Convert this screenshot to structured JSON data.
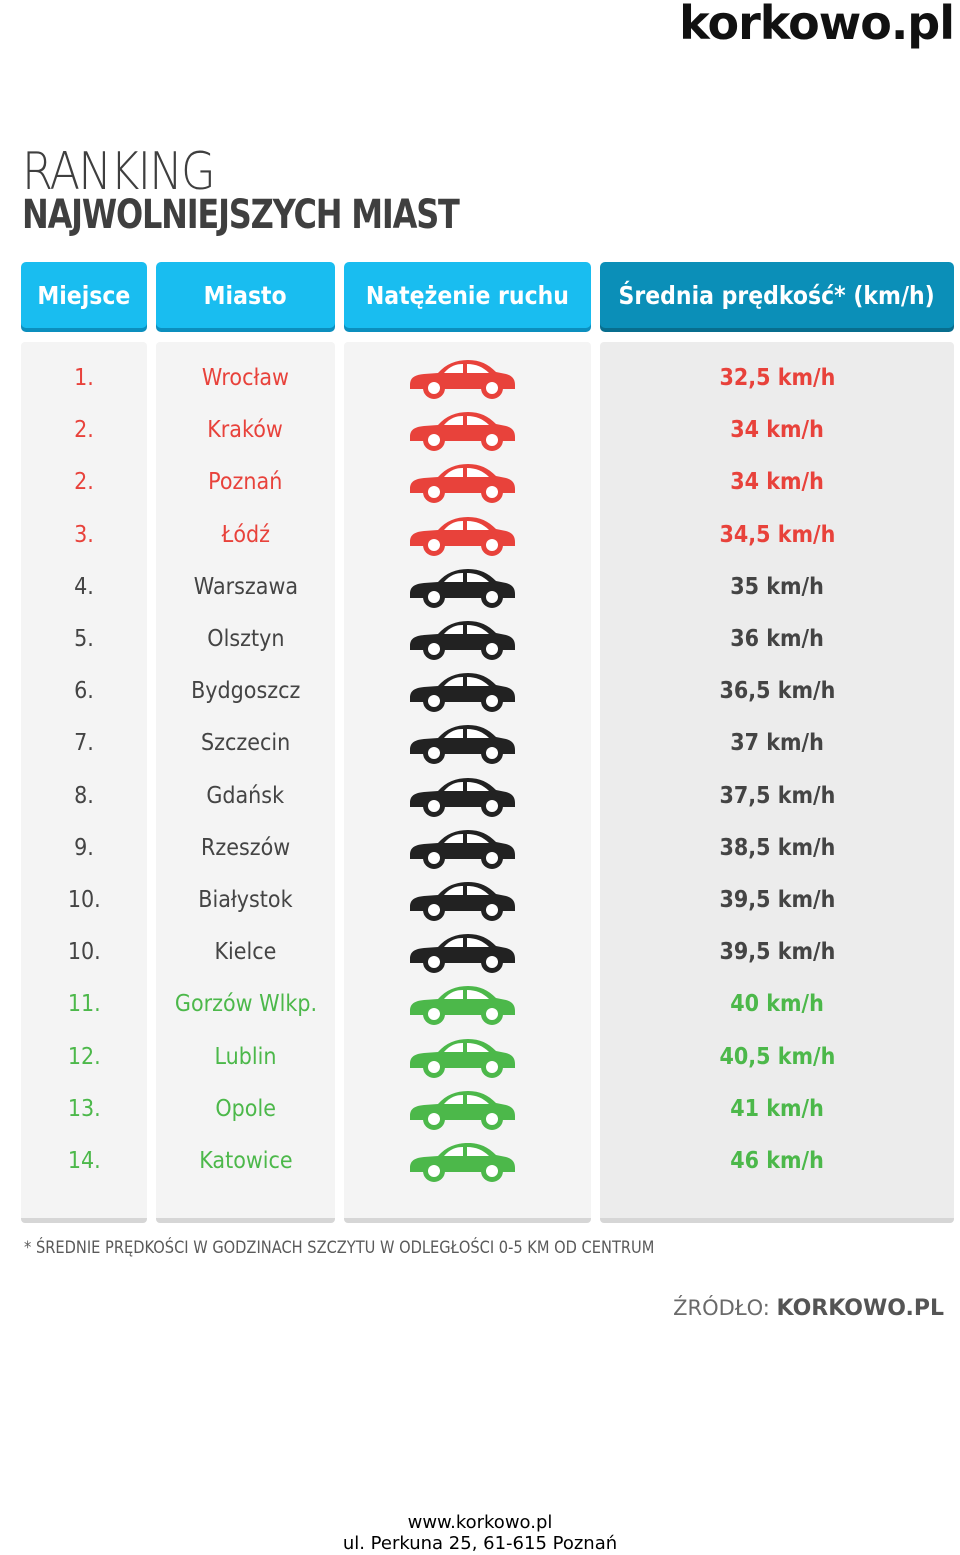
{
  "brand": {
    "logo": "korkowo.pl"
  },
  "title": {
    "line1": "RANKING",
    "line2": "NAJWOLNIEJSZYCH MIAST"
  },
  "headers": {
    "rank": "Miejsce",
    "city": "Miasto",
    "traffic": "Natężenie ruchu",
    "speed": "Średnia prędkość* (km/h)"
  },
  "colors": {
    "red": "#e8423b",
    "black": "#222222",
    "green": "#4cb84a",
    "header_light": "#19bdf0",
    "header_dark": "#0b8fb8"
  },
  "chart_data": {
    "type": "table",
    "columns": [
      "Miejsce",
      "Miasto",
      "Natężenie ruchu",
      "Średnia prędkość* (km/h)"
    ],
    "rows": [
      {
        "rank": "1.",
        "city": "Wrocław",
        "speed": "32,5 km/h",
        "level": "red"
      },
      {
        "rank": "2.",
        "city": "Kraków",
        "speed": "34 km/h",
        "level": "red"
      },
      {
        "rank": "2.",
        "city": "Poznań",
        "speed": "34 km/h",
        "level": "red"
      },
      {
        "rank": "3.",
        "city": "Łódź",
        "speed": "34,5 km/h",
        "level": "red"
      },
      {
        "rank": "4.",
        "city": "Warszawa",
        "speed": "35 km/h",
        "level": "black"
      },
      {
        "rank": "5.",
        "city": "Olsztyn",
        "speed": "36 km/h",
        "level": "black"
      },
      {
        "rank": "6.",
        "city": "Bydgoszcz",
        "speed": "36,5 km/h",
        "level": "black"
      },
      {
        "rank": "7.",
        "city": "Szczecin",
        "speed": "37 km/h",
        "level": "black"
      },
      {
        "rank": "8.",
        "city": "Gdańsk",
        "speed": "37,5 km/h",
        "level": "black"
      },
      {
        "rank": "9.",
        "city": "Rzeszów",
        "speed": "38,5 km/h",
        "level": "black"
      },
      {
        "rank": "10.",
        "city": "Białystok",
        "speed": "39,5 km/h",
        "level": "black"
      },
      {
        "rank": "10.",
        "city": "Kielce",
        "speed": "39,5 km/h",
        "level": "black"
      },
      {
        "rank": "11.",
        "city": "Gorzów Wlkp.",
        "speed": "40 km/h",
        "level": "green"
      },
      {
        "rank": "12.",
        "city": "Lublin",
        "speed": "40,5 km/h",
        "level": "green"
      },
      {
        "rank": "13.",
        "city": "Opole",
        "speed": "41 km/h",
        "level": "green"
      },
      {
        "rank": "14.",
        "city": "Katowice",
        "speed": "46 km/h",
        "level": "green"
      }
    ]
  },
  "footnote": "* ŚREDNIE PRĘDKOŚCI W GODZINACH SZCZYTU W ODLEGŁOŚCI 0-5 KM OD CENTRUM",
  "source": {
    "label": "ŹRÓDŁO:",
    "value": "KORKOWO.PL"
  },
  "footer": {
    "url": "www.korkowo.pl",
    "address": "ul. Perkuna 25, 61-615 Poznań"
  }
}
